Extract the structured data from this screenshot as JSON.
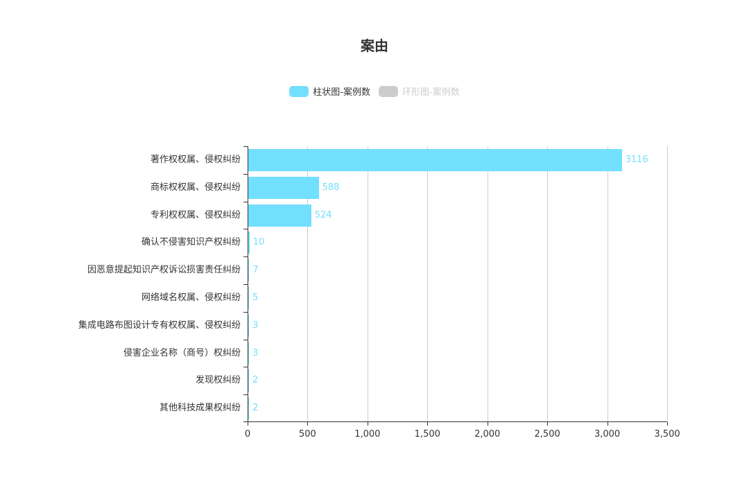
{
  "chart_data": {
    "type": "bar",
    "orientation": "horizontal",
    "title": "案由",
    "legend": [
      {
        "label": "柱状图-案例数",
        "color": "#73dffe",
        "active": true
      },
      {
        "label": "环形图-案例数",
        "color": "#cccccc",
        "active": false
      }
    ],
    "categories": [
      "著作权权属、侵权纠纷",
      "商标权权属、侵权纠纷",
      "专利权权属、侵权纠纷",
      "确认不侵害知识产权纠纷",
      "因恶意提起知识产权诉讼损害责任纠纷",
      "网络域名权属、侵权纠纷",
      "集成电路布图设计专有权权属、侵权纠纷",
      "侵害企业名称（商号）权纠纷",
      "发现权纠纷",
      "其他科技成果权纠纷"
    ],
    "series": [
      {
        "name": "柱状图-案例数",
        "values": [
          3116,
          588,
          524,
          10,
          7,
          5,
          3,
          3,
          2,
          2
        ]
      }
    ],
    "xlabel": "",
    "ylabel": "",
    "xlim": [
      0,
      3500
    ],
    "x_ticks": [
      "0",
      "500",
      "1,000",
      "1,500",
      "2,000",
      "2,500",
      "3,000",
      "3,500"
    ],
    "grid": true,
    "legend_position": "top",
    "bar_color": "#73dffe"
  }
}
